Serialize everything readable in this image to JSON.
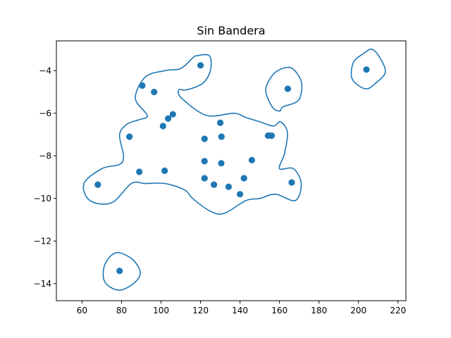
{
  "chart_data": {
    "type": "scatter",
    "title": "Sin Bandera",
    "xlabel": "",
    "ylabel": "",
    "xlim": [
      47,
      224
    ],
    "ylim": [
      -14.8,
      -2.6
    ],
    "xticks": [
      60,
      80,
      100,
      120,
      140,
      160,
      180,
      200,
      220
    ],
    "yticks": [
      -4,
      -6,
      -8,
      -10,
      -12,
      -14
    ],
    "grid": false,
    "legend": "none",
    "colors": {
      "series": "#1f77b4",
      "axis": "#000000"
    },
    "points": [
      [
        68,
        -9.35
      ],
      [
        79,
        -13.4
      ],
      [
        84,
        -7.1
      ],
      [
        89,
        -8.75
      ],
      [
        90.5,
        -4.7
      ],
      [
        96.5,
        -5.0
      ],
      [
        101,
        -6.6
      ],
      [
        101.8,
        -8.7
      ],
      [
        103.6,
        -6.25
      ],
      [
        106,
        -6.05
      ],
      [
        120,
        -3.75
      ],
      [
        122,
        -7.2
      ],
      [
        122,
        -8.25
      ],
      [
        122,
        -9.05
      ],
      [
        126.8,
        -9.35
      ],
      [
        130,
        -6.45
      ],
      [
        130.5,
        -8.35
      ],
      [
        130.6,
        -7.1
      ],
      [
        134.2,
        -9.45
      ],
      [
        140,
        -9.8
      ],
      [
        142,
        -9.05
      ],
      [
        146,
        -8.2
      ],
      [
        154.2,
        -7.05
      ],
      [
        156,
        -7.05
      ],
      [
        164.2,
        -4.85
      ],
      [
        166.2,
        -9.25
      ],
      [
        204,
        -3.95
      ]
    ],
    "contours": [
      [
        [
          118,
          -3.3
        ],
        [
          124.5,
          -3.3
        ],
        [
          125,
          -4.0
        ],
        [
          121,
          -4.6
        ],
        [
          113,
          -4.9
        ],
        [
          109,
          -4.9
        ],
        [
          110.5,
          -5.3
        ],
        [
          123,
          -6.1
        ],
        [
          137,
          -6.0
        ],
        [
          143,
          -6.2
        ],
        [
          150,
          -6.4
        ],
        [
          157,
          -6.6
        ],
        [
          160.5,
          -6.4
        ],
        [
          164,
          -6.9
        ],
        [
          162.5,
          -7.9
        ],
        [
          160,
          -8.6
        ],
        [
          167,
          -8.6
        ],
        [
          171,
          -9.3
        ],
        [
          168,
          -10.1
        ],
        [
          158,
          -9.8
        ],
        [
          150,
          -10.0
        ],
        [
          143,
          -10.1
        ],
        [
          132,
          -10.7
        ],
        [
          125,
          -10.6
        ],
        [
          116,
          -10.0
        ],
        [
          112,
          -9.6
        ],
        [
          102,
          -9.3
        ],
        [
          92,
          -9.3
        ],
        [
          85,
          -9.3
        ],
        [
          75,
          -10.2
        ],
        [
          64,
          -10.1
        ],
        [
          61,
          -9.3
        ],
        [
          70,
          -8.6
        ],
        [
          79,
          -8.4
        ],
        [
          81,
          -8.0
        ],
        [
          79,
          -7.0
        ],
        [
          83,
          -6.5
        ],
        [
          89,
          -6.3
        ],
        [
          93,
          -6.1
        ],
        [
          87,
          -5.3
        ],
        [
          92,
          -4.3
        ],
        [
          102,
          -4.0
        ],
        [
          110,
          -3.9
        ],
        [
          116,
          -3.4
        ]
      ],
      [
        [
          166.5,
          -3.9
        ],
        [
          171,
          -4.5
        ],
        [
          170.6,
          -5.2
        ],
        [
          168,
          -5.5
        ],
        [
          161.7,
          -5.7
        ],
        [
          160,
          -5.9
        ],
        [
          156.3,
          -5.7
        ],
        [
          153,
          -4.9
        ],
        [
          156.6,
          -4.2
        ],
        [
          161.5,
          -3.9
        ]
      ],
      [
        [
          207,
          -3.0
        ],
        [
          211.5,
          -3.5
        ],
        [
          213.5,
          -4.1
        ],
        [
          208.5,
          -4.6
        ],
        [
          204.5,
          -4.85
        ],
        [
          200,
          -4.7
        ],
        [
          196.5,
          -4.3
        ],
        [
          197.5,
          -3.6
        ],
        [
          202.5,
          -3.2
        ]
      ],
      [
        [
          79,
          -12.55
        ],
        [
          86,
          -12.9
        ],
        [
          89.5,
          -13.5
        ],
        [
          86,
          -14.0
        ],
        [
          79.5,
          -14.3
        ],
        [
          74,
          -14.15
        ],
        [
          71,
          -13.8
        ],
        [
          71.2,
          -13.2
        ],
        [
          74.5,
          -12.7
        ]
      ]
    ]
  }
}
